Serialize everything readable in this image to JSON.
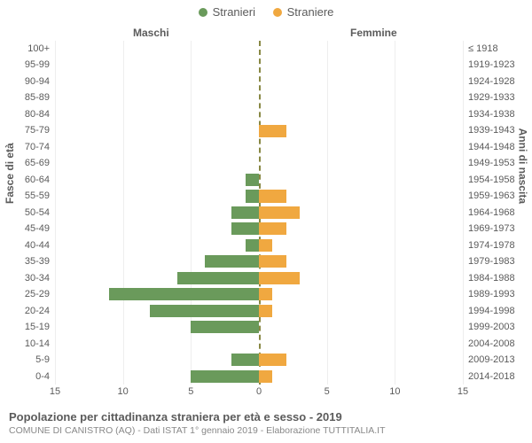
{
  "legend": {
    "male": {
      "label": "Stranieri",
      "color": "#6a9a5b"
    },
    "female": {
      "label": "Straniere",
      "color": "#f0a840"
    }
  },
  "headers": {
    "left": "Maschi",
    "right": "Femmine"
  },
  "axis_titles": {
    "left": "Fasce di età",
    "right": "Anni di nascita"
  },
  "chart": {
    "type": "population-pyramid",
    "xmax": 15,
    "xticks": [
      15,
      10,
      5,
      0,
      5,
      10,
      15
    ],
    "grid_color": "#eeeeee",
    "center_line_color": "#888844",
    "bar_color_male": "#6a9a5b",
    "bar_color_female": "#f0a840",
    "background_color": "#ffffff",
    "age_groups": [
      {
        "age": "100+",
        "birth": "≤ 1918",
        "m": 0,
        "f": 0
      },
      {
        "age": "95-99",
        "birth": "1919-1923",
        "m": 0,
        "f": 0
      },
      {
        "age": "90-94",
        "birth": "1924-1928",
        "m": 0,
        "f": 0
      },
      {
        "age": "85-89",
        "birth": "1929-1933",
        "m": 0,
        "f": 0
      },
      {
        "age": "80-84",
        "birth": "1934-1938",
        "m": 0,
        "f": 0
      },
      {
        "age": "75-79",
        "birth": "1939-1943",
        "m": 0,
        "f": 2
      },
      {
        "age": "70-74",
        "birth": "1944-1948",
        "m": 0,
        "f": 0
      },
      {
        "age": "65-69",
        "birth": "1949-1953",
        "m": 0,
        "f": 0
      },
      {
        "age": "60-64",
        "birth": "1954-1958",
        "m": 1,
        "f": 0
      },
      {
        "age": "55-59",
        "birth": "1959-1963",
        "m": 1,
        "f": 2
      },
      {
        "age": "50-54",
        "birth": "1964-1968",
        "m": 2,
        "f": 3
      },
      {
        "age": "45-49",
        "birth": "1969-1973",
        "m": 2,
        "f": 2
      },
      {
        "age": "40-44",
        "birth": "1974-1978",
        "m": 1,
        "f": 1
      },
      {
        "age": "35-39",
        "birth": "1979-1983",
        "m": 4,
        "f": 2
      },
      {
        "age": "30-34",
        "birth": "1984-1988",
        "m": 6,
        "f": 3
      },
      {
        "age": "25-29",
        "birth": "1989-1993",
        "m": 11,
        "f": 1
      },
      {
        "age": "20-24",
        "birth": "1994-1998",
        "m": 8,
        "f": 1
      },
      {
        "age": "15-19",
        "birth": "1999-2003",
        "m": 5,
        "f": 0
      },
      {
        "age": "10-14",
        "birth": "2004-2008",
        "m": 0,
        "f": 0
      },
      {
        "age": "5-9",
        "birth": "2009-2013",
        "m": 2,
        "f": 2
      },
      {
        "age": "0-4",
        "birth": "2014-2018",
        "m": 5,
        "f": 1
      }
    ]
  },
  "footer": {
    "title": "Popolazione per cittadinanza straniera per età e sesso - 2019",
    "subtitle": "COMUNE DI CANISTRO (AQ) - Dati ISTAT 1° gennaio 2019 - Elaborazione TUTTITALIA.IT"
  }
}
